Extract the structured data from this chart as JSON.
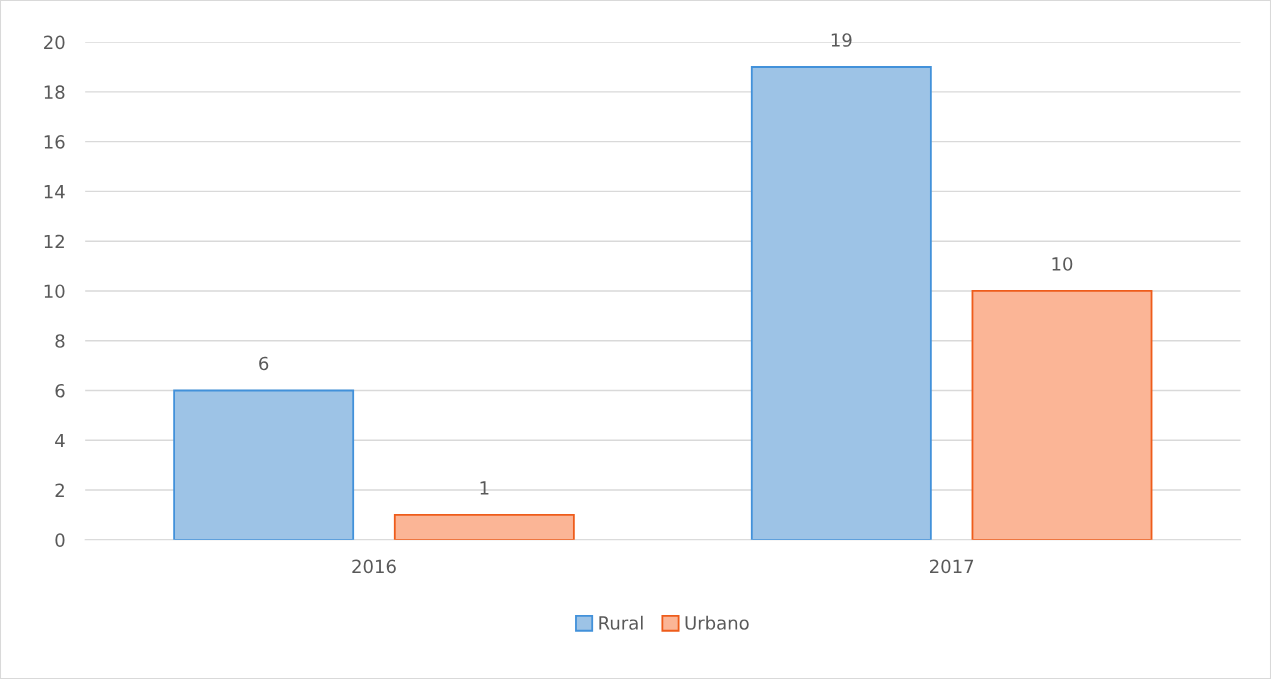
{
  "chart_data": {
    "type": "bar",
    "categories": [
      "2016",
      "2017"
    ],
    "series": [
      {
        "name": "Rural",
        "color": "#9dc3e6",
        "values": [
          6,
          19
        ]
      },
      {
        "name": "Urbano",
        "color": "#fbb596",
        "values": [
          1,
          10
        ]
      }
    ],
    "ylim": [
      0,
      20
    ],
    "yticks": [
      0,
      2,
      4,
      6,
      8,
      10,
      12,
      14,
      16,
      18,
      20
    ],
    "grid": "y",
    "legend": "bottom",
    "data_labels": true
  }
}
